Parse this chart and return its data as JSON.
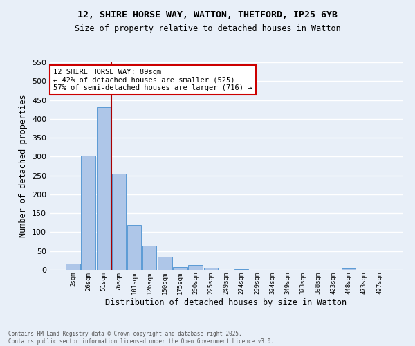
{
  "title_line1": "12, SHIRE HORSE WAY, WATTON, THETFORD, IP25 6YB",
  "title_line2": "Size of property relative to detached houses in Watton",
  "xlabel": "Distribution of detached houses by size in Watton",
  "ylabel": "Number of detached properties",
  "bar_labels": [
    "2sqm",
    "26sqm",
    "51sqm",
    "76sqm",
    "101sqm",
    "126sqm",
    "150sqm",
    "175sqm",
    "200sqm",
    "225sqm",
    "249sqm",
    "274sqm",
    "299sqm",
    "324sqm",
    "349sqm",
    "373sqm",
    "398sqm",
    "423sqm",
    "448sqm",
    "473sqm",
    "497sqm"
  ],
  "bar_values": [
    17,
    303,
    430,
    255,
    119,
    64,
    35,
    8,
    12,
    5,
    0,
    2,
    0,
    0,
    0,
    0,
    0,
    0,
    4,
    0,
    0
  ],
  "bar_color": "#aec6e8",
  "bar_edge_color": "#5b9bd5",
  "background_color": "#e8eff8",
  "grid_color": "#ffffff",
  "property_bin_index": 3,
  "property_line_color": "#aa0000",
  "annotation_text": "12 SHIRE HORSE WAY: 89sqm\n← 42% of detached houses are smaller (525)\n57% of semi-detached houses are larger (716) →",
  "annotation_box_color": "#ffffff",
  "annotation_box_edge": "#cc0000",
  "ylim": [
    0,
    550
  ],
  "yticks": [
    0,
    50,
    100,
    150,
    200,
    250,
    300,
    350,
    400,
    450,
    500,
    550
  ],
  "footer_line1": "Contains HM Land Registry data © Crown copyright and database right 2025.",
  "footer_line2": "Contains public sector information licensed under the Open Government Licence v3.0."
}
